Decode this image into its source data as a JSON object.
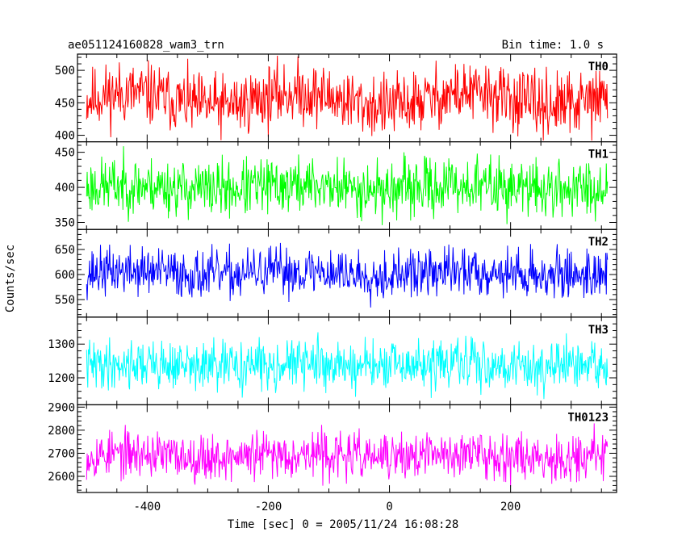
{
  "header": {
    "title": "ae051124160828_wam3_trn",
    "bin_time": "Bin time: 1.0 s"
  },
  "chart_data": {
    "type": "line",
    "title": "ae051124160828_wam3_trn",
    "xlabel": "Time [sec] 0 = 2005/11/24 16:08:28",
    "ylabel": "Counts/sec",
    "xlim": [
      -515,
      375
    ],
    "x_range": [
      -500,
      360
    ],
    "x_step": 1.0,
    "x_ticks": [
      -400,
      -200,
      0,
      200
    ],
    "grid": false,
    "series": [
      {
        "name": "TH0",
        "color": "#ff0000",
        "ylim": [
          390,
          525
        ],
        "y_ticks": [
          400,
          450,
          500
        ],
        "mean": 455,
        "noise": 24,
        "wave": 10,
        "seed": 11
      },
      {
        "name": "TH1",
        "color": "#00ff00",
        "ylim": [
          340,
          465
        ],
        "y_ticks": [
          350,
          400,
          450
        ],
        "mean": 400,
        "noise": 20,
        "wave": 3,
        "seed": 23
      },
      {
        "name": "TH2",
        "color": "#0000ff",
        "ylim": [
          515,
          690
        ],
        "y_ticks": [
          550,
          600,
          650
        ],
        "mean": 603,
        "noise": 24,
        "wave": 4,
        "seed": 37
      },
      {
        "name": "TH3",
        "color": "#00ffff",
        "ylim": [
          1120,
          1380
        ],
        "y_ticks": [
          1200,
          1300
        ],
        "mean": 1237,
        "noise": 36,
        "wave": 5,
        "seed": 41
      },
      {
        "name": "TH0123",
        "color": "#ff00ff",
        "ylim": [
          2530,
          2910
        ],
        "y_ticks": [
          2600,
          2700,
          2800,
          2900
        ],
        "mean": 2690,
        "noise": 50,
        "wave": 8,
        "seed": 53
      }
    ]
  }
}
